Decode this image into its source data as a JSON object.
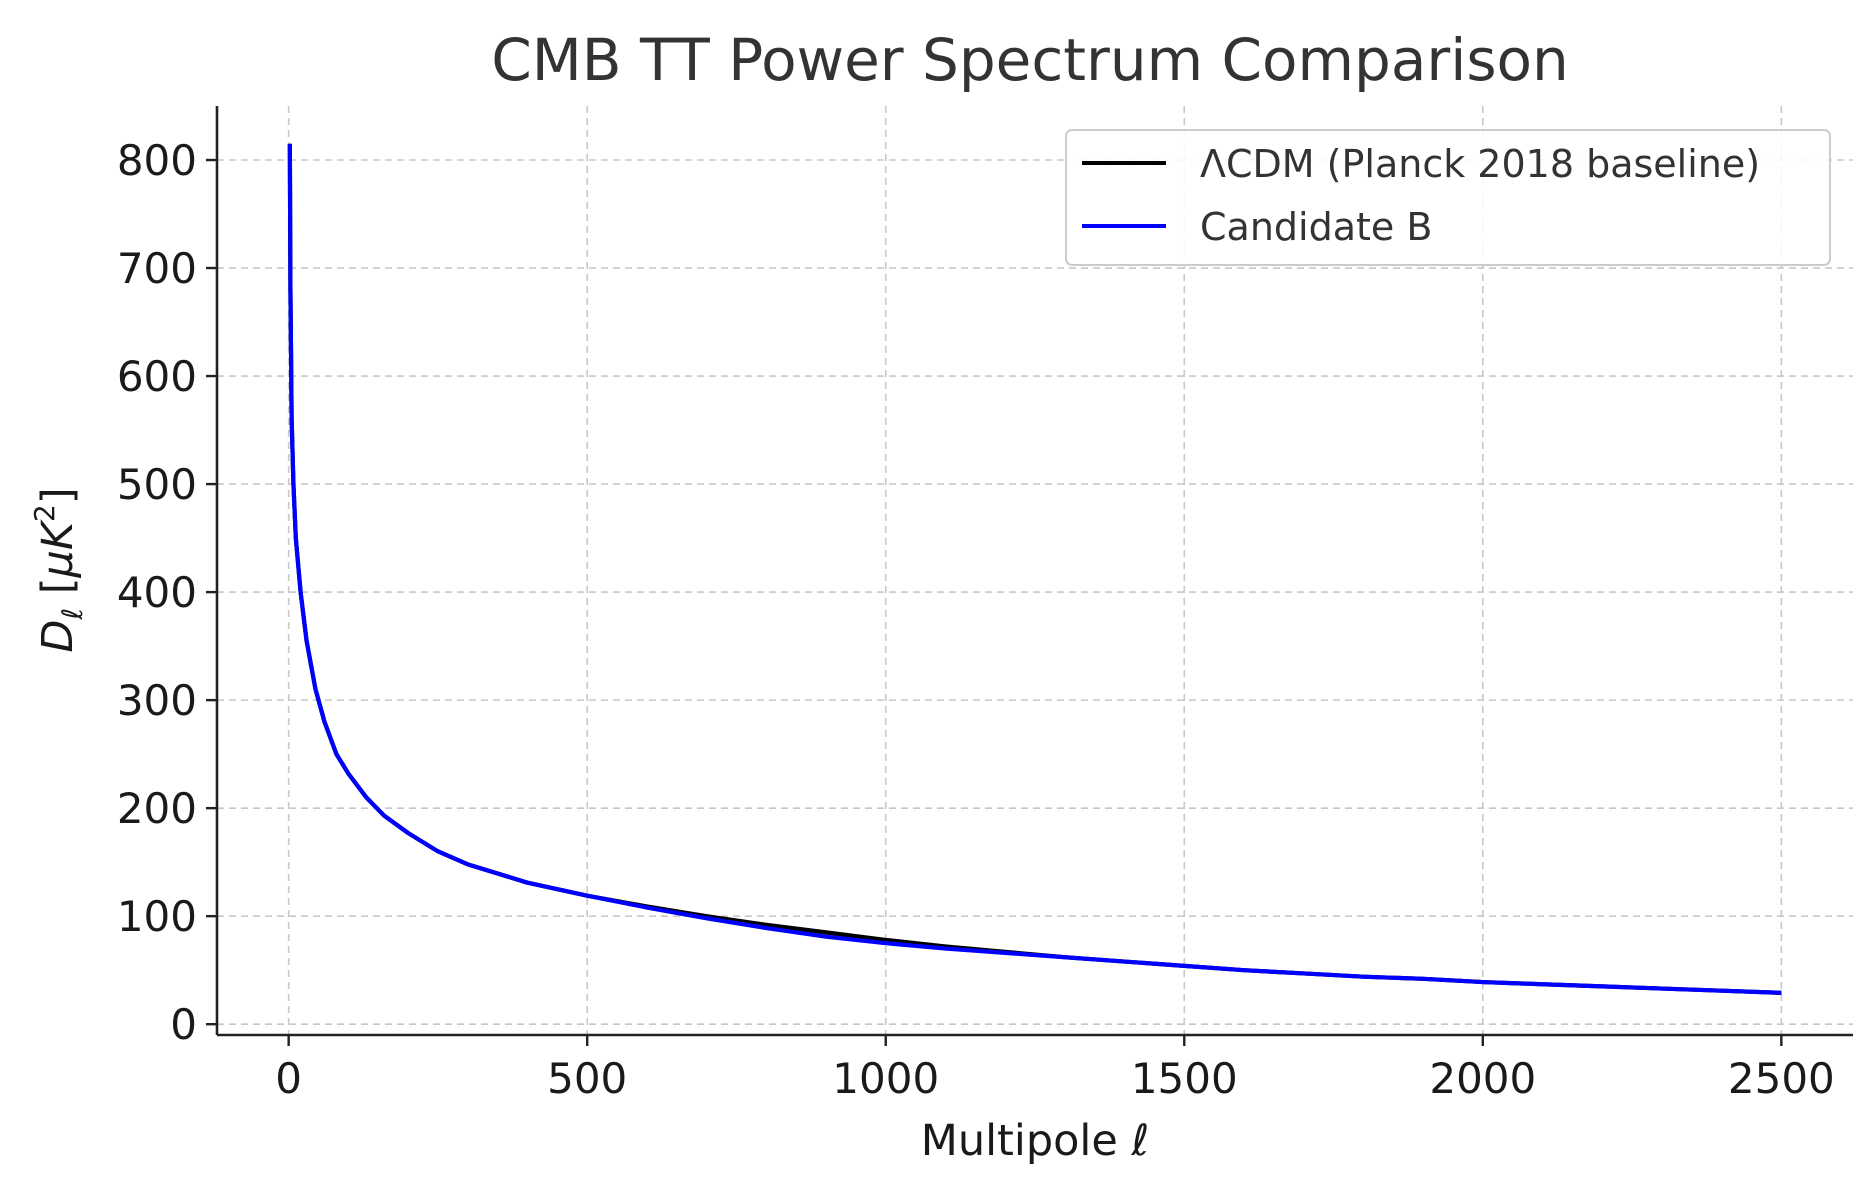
{
  "chart_data": {
    "type": "line",
    "title": "CMB TT Power Spectrum Comparison",
    "xlabel": "Multipole ℓ",
    "ylabel": "D_ℓ [μK²]",
    "ylabel_parts": {
      "base": "D",
      "sub": "ℓ",
      "unit_open": " [",
      "mu": "μ",
      "K": "K",
      "sup": "2",
      "unit_close": "]"
    },
    "xlim": [
      -120,
      2620
    ],
    "ylim": [
      -10,
      850
    ],
    "xticks": [
      0,
      500,
      1000,
      1500,
      2000,
      2500
    ],
    "yticks": [
      0,
      100,
      200,
      300,
      400,
      500,
      600,
      700,
      800
    ],
    "grid": true,
    "legend_position": "top-right",
    "series": [
      {
        "name": "ΛCDM (Planck 2018 baseline)",
        "color": "#000000",
        "x": [
          2,
          3,
          5,
          8,
          12,
          20,
          30,
          45,
          60,
          80,
          100,
          130,
          160,
          200,
          250,
          300,
          400,
          500,
          600,
          700,
          800,
          900,
          1000,
          1100,
          1200,
          1300,
          1400,
          1500,
          1600,
          1700,
          1800,
          1900,
          2000,
          2100,
          2200,
          2300,
          2400,
          2500
        ],
        "y": [
          815,
          680,
          560,
          500,
          450,
          400,
          355,
          310,
          280,
          250,
          232,
          210,
          193,
          177,
          160,
          148,
          131,
          119,
          109,
          100,
          92,
          85,
          78,
          72,
          67,
          62,
          58,
          54,
          50,
          47,
          44,
          42,
          39,
          37,
          35,
          33,
          31,
          29
        ]
      },
      {
        "name": "Candidate B",
        "color": "#0000ff",
        "x": [
          2,
          3,
          5,
          8,
          12,
          20,
          30,
          45,
          60,
          80,
          100,
          130,
          160,
          200,
          250,
          300,
          400,
          500,
          600,
          700,
          800,
          900,
          1000,
          1100,
          1200,
          1300,
          1400,
          1500,
          1600,
          1700,
          1800,
          1900,
          2000,
          2100,
          2200,
          2300,
          2400,
          2500
        ],
        "y": [
          815,
          680,
          560,
          500,
          450,
          400,
          355,
          310,
          280,
          250,
          232,
          210,
          193,
          177,
          160,
          148,
          131,
          119,
          108,
          98,
          89,
          81,
          75,
          70,
          66,
          62,
          58,
          54,
          50,
          47,
          44,
          42,
          39,
          37,
          35,
          33,
          31,
          29
        ]
      }
    ]
  }
}
